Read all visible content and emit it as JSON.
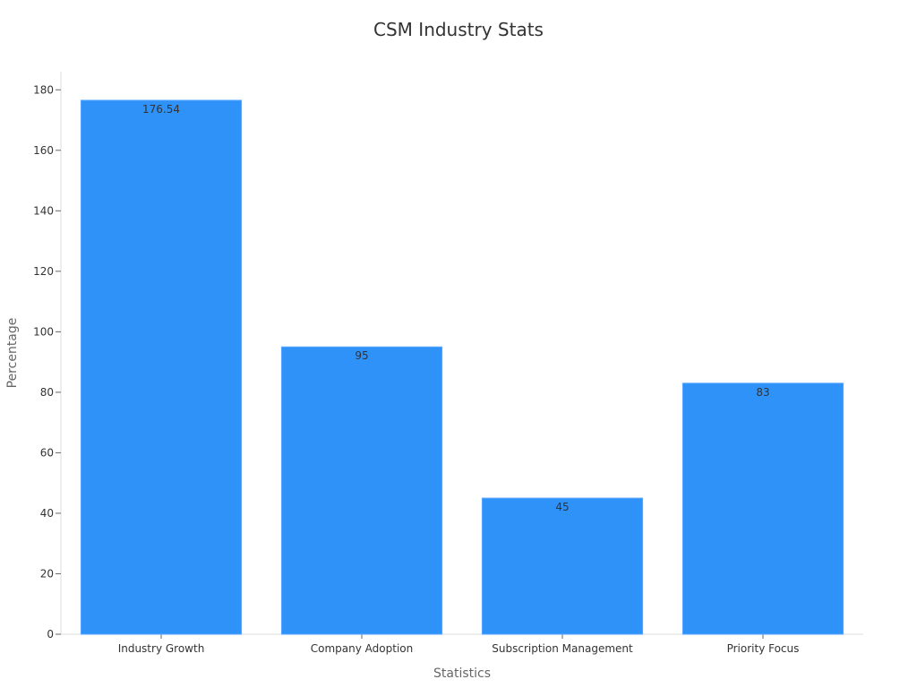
{
  "chart_data": {
    "type": "bar",
    "title": "CSM Industry Stats",
    "xlabel": "Statistics",
    "ylabel": "Percentage",
    "categories": [
      "Industry Growth",
      "Company Adoption",
      "Subscription Management",
      "Priority Focus"
    ],
    "values": [
      176.54,
      95,
      45,
      83
    ],
    "value_labels": [
      "176.54",
      "95",
      "45",
      "83"
    ],
    "ylim": [
      0,
      186
    ],
    "yticks": [
      0,
      20,
      40,
      60,
      80,
      100,
      120,
      140,
      160,
      180
    ],
    "ytick_labels": [
      "0",
      "20",
      "40",
      "60",
      "80",
      "100",
      "120",
      "140",
      "160",
      "180"
    ],
    "grid": false,
    "legend": "none",
    "colors": {
      "bar": "#2f92f8"
    }
  }
}
